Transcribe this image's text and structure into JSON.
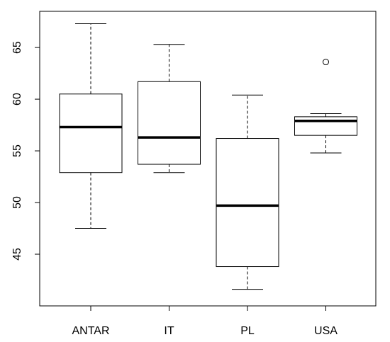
{
  "chart_data": {
    "type": "boxplot",
    "title": "",
    "xlabel": "",
    "ylabel": "",
    "ylim": [
      40,
      68.5
    ],
    "yticks": [
      45,
      50,
      55,
      60,
      65
    ],
    "ytick_labels": [
      "45",
      "50",
      "55",
      "60",
      "65"
    ],
    "grid": false,
    "categories": [
      "ANTAR",
      "IT",
      "PL",
      "USA"
    ],
    "boxes": [
      {
        "category": "ANTAR",
        "whisker_low": 47.5,
        "q1": 52.9,
        "median": 57.3,
        "q3": 60.5,
        "whisker_high": 67.3,
        "outliers": []
      },
      {
        "category": "IT",
        "whisker_low": 52.9,
        "q1": 53.7,
        "median": 56.3,
        "q3": 61.7,
        "whisker_high": 65.3,
        "outliers": []
      },
      {
        "category": "PL",
        "whisker_low": 41.6,
        "q1": 43.8,
        "median": 49.7,
        "q3": 56.2,
        "whisker_high": 60.4,
        "outliers": []
      },
      {
        "category": "USA",
        "whisker_low": 54.8,
        "q1": 56.5,
        "median": 57.9,
        "q3": 58.3,
        "whisker_high": 58.6,
        "outliers": [
          63.6
        ]
      }
    ]
  }
}
